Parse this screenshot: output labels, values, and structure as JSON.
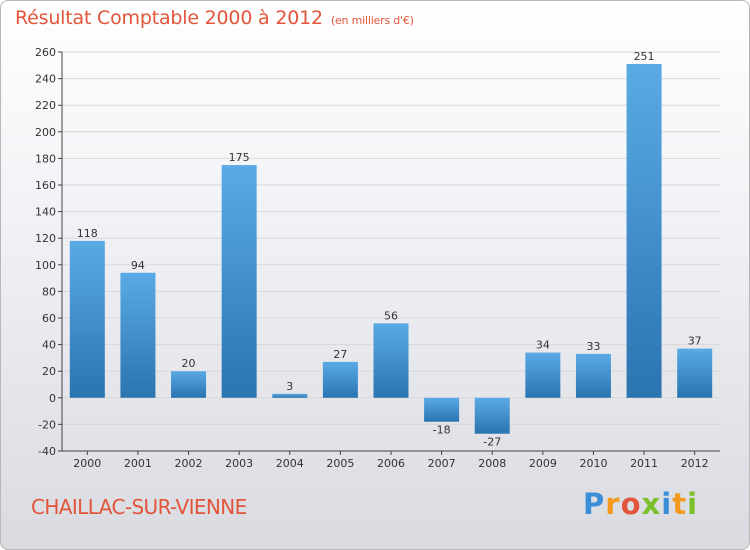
{
  "header": {
    "title": "Résultat Comptable 2000 à 2012",
    "subtitle": "(en milliers d'€)"
  },
  "footer": {
    "city": "CHAILLAC-SUR-VIENNE",
    "logo_letters": [
      {
        "char": "P",
        "color": "#3a8fd8"
      },
      {
        "char": "r",
        "color": "#f39a1f"
      },
      {
        "char": "o",
        "color": "#e2553a"
      },
      {
        "char": "x",
        "color": "#7bbf2a"
      },
      {
        "char": "i",
        "color": "#3a8fd8"
      },
      {
        "char": "t",
        "color": "#f39a1f"
      },
      {
        "char": "i",
        "color": "#7bbf2a"
      }
    ]
  },
  "colors": {
    "bar_top": "#5aaae6",
    "bar_bottom": "#2a74b0",
    "accent": "#e2553a",
    "grid": "#d8d8d8",
    "axis": "#444444"
  },
  "chart_data": {
    "type": "bar",
    "title": "Résultat Comptable 2000 à 2012",
    "subtitle": "(en milliers d'€)",
    "xlabel": "",
    "ylabel": "",
    "categories": [
      "2000",
      "2001",
      "2002",
      "2003",
      "2004",
      "2005",
      "2006",
      "2007",
      "2008",
      "2009",
      "2010",
      "2011",
      "2012"
    ],
    "values": [
      118,
      94,
      20,
      175,
      3,
      27,
      56,
      -18,
      -27,
      34,
      33,
      251,
      37
    ],
    "ylim": [
      -40,
      260
    ],
    "yticks": [
      -40,
      -20,
      0,
      20,
      40,
      60,
      80,
      100,
      120,
      140,
      160,
      180,
      200,
      220,
      240,
      260
    ],
    "grid": true,
    "legend": "none"
  }
}
